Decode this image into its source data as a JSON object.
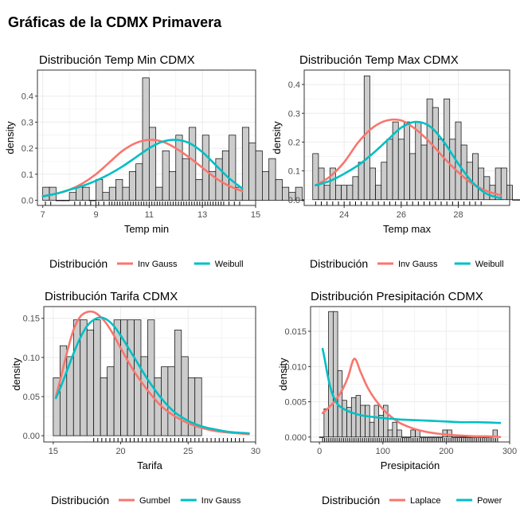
{
  "page_title": "Gráficas de la CDMX Primavera",
  "chart_data": [
    {
      "type": "histogram",
      "title": "Distribución Temp Min CDMX",
      "xlabel": "Temp min",
      "ylabel": "density",
      "xlim": [
        6.8,
        15.0
      ],
      "ylim": [
        -0.02,
        0.5
      ],
      "xticks": [
        7,
        9,
        11,
        13,
        15
      ],
      "yticks": [
        0.0,
        0.1,
        0.2,
        0.3,
        0.4
      ],
      "tick_labels_x": [
        "7",
        "9",
        "11",
        "13",
        "15"
      ],
      "tick_labels_y": [
        "0.0",
        "0.1",
        "0.2",
        "0.3",
        "0.4"
      ],
      "bin_start": 7.0,
      "bin_width": 0.25,
      "densities": [
        0.05,
        0.05,
        0.0,
        0.0,
        0.03,
        0.05,
        0.05,
        0.0,
        0.08,
        0.03,
        0.05,
        0.08,
        0.05,
        0.11,
        0.14,
        0.47,
        0.28,
        0.05,
        0.19,
        0.11,
        0.25,
        0.16,
        0.28,
        0.08,
        0.25,
        0.11,
        0.16,
        0.19,
        0.25,
        0.05,
        0.28,
        0.22,
        0.19,
        0.11,
        0.16,
        0.08,
        0.05,
        0.03,
        0.05,
        0.0,
        0.03,
        0.03,
        0.05
      ],
      "legend_title": "Distribución",
      "legend_position": "bottom",
      "grid": true,
      "series": [
        {
          "name": "Inv Gauss",
          "color": "#F8766D",
          "x": [
            7.0,
            7.5,
            8.0,
            8.5,
            9.0,
            9.5,
            10.0,
            10.5,
            11.0,
            11.5,
            12.0,
            12.5,
            13.0,
            13.5,
            14.0,
            14.5
          ],
          "y": [
            0.015,
            0.025,
            0.04,
            0.065,
            0.1,
            0.145,
            0.19,
            0.22,
            0.232,
            0.225,
            0.2,
            0.165,
            0.125,
            0.085,
            0.055,
            0.035
          ]
        },
        {
          "name": "Weibull",
          "color": "#00BFC4",
          "x": [
            7.0,
            7.5,
            8.0,
            8.5,
            9.0,
            9.5,
            10.0,
            10.5,
            11.0,
            11.5,
            12.0,
            12.5,
            13.0,
            13.5,
            14.0,
            14.5
          ],
          "y": [
            0.015,
            0.025,
            0.04,
            0.055,
            0.075,
            0.1,
            0.13,
            0.165,
            0.2,
            0.225,
            0.232,
            0.22,
            0.185,
            0.135,
            0.085,
            0.045
          ]
        }
      ],
      "rug": [
        7.1,
        7.3,
        8.2,
        8.4,
        8.6,
        8.8,
        9.0,
        9.1,
        9.3,
        9.5,
        9.6,
        9.7,
        9.8,
        9.9,
        10.0,
        10.1,
        10.2,
        10.3,
        10.4,
        10.5,
        10.6,
        10.7,
        10.8,
        10.9,
        11.0,
        11.1,
        11.2,
        11.3,
        11.4,
        11.5,
        11.6,
        11.7,
        11.8,
        11.9,
        12.0,
        12.1,
        12.2,
        12.3,
        12.4,
        12.5,
        12.6,
        12.7,
        12.8,
        12.9,
        13.0,
        13.1,
        13.2,
        13.3,
        13.4,
        13.5,
        13.6,
        13.7,
        13.8,
        14.0,
        14.2,
        14.4
      ]
    },
    {
      "type": "histogram",
      "title": "Distribución Temp Max CDMX",
      "xlabel": "Temp max",
      "ylabel": "density",
      "xlim": [
        22.6,
        29.8
      ],
      "ylim": [
        -0.02,
        0.45
      ],
      "xticks": [
        24,
        26,
        28
      ],
      "yticks": [
        0.0,
        0.1,
        0.2,
        0.3,
        0.4
      ],
      "tick_labels_x": [
        "24",
        "26",
        "28"
      ],
      "tick_labels_y": [
        "0.0",
        "0.1",
        "0.2",
        "0.3",
        "0.4"
      ],
      "bin_start": 22.9,
      "bin_width": 0.2,
      "densities": [
        0.16,
        0.11,
        0.05,
        0.11,
        0.05,
        0.05,
        0.05,
        0.08,
        0.13,
        0.43,
        0.11,
        0.05,
        0.13,
        0.21,
        0.27,
        0.21,
        0.27,
        0.16,
        0.27,
        0.19,
        0.35,
        0.32,
        0.21,
        0.35,
        0.21,
        0.27,
        0.19,
        0.13,
        0.16,
        0.11,
        0.08,
        0.05,
        0.11,
        0.11,
        0.05,
        0.0,
        0.0,
        0.05,
        0.05,
        0.0,
        0.0,
        0.0,
        0.0,
        0.05
      ],
      "legend_title": "Distribución",
      "legend_position": "bottom",
      "grid": true,
      "series": [
        {
          "name": "Inv Gauss",
          "color": "#F8766D",
          "x": [
            23.0,
            23.5,
            24.0,
            24.5,
            25.0,
            25.5,
            26.0,
            26.5,
            27.0,
            27.5,
            28.0,
            28.5,
            29.0,
            29.5
          ],
          "y": [
            0.05,
            0.08,
            0.13,
            0.2,
            0.25,
            0.275,
            0.275,
            0.245,
            0.2,
            0.145,
            0.095,
            0.055,
            0.03,
            0.015
          ]
        },
        {
          "name": "Weibull",
          "color": "#00BFC4",
          "x": [
            23.0,
            23.5,
            24.0,
            24.5,
            25.0,
            25.5,
            26.0,
            26.5,
            27.0,
            27.5,
            28.0,
            28.5,
            29.0,
            29.5
          ],
          "y": [
            0.05,
            0.065,
            0.09,
            0.12,
            0.16,
            0.205,
            0.25,
            0.27,
            0.255,
            0.2,
            0.125,
            0.06,
            0.02,
            0.005
          ]
        }
      ],
      "rug": [
        23.0,
        23.2,
        23.4,
        23.6,
        23.8,
        24.0,
        24.2,
        24.4,
        24.6,
        24.8,
        25.0,
        25.2,
        25.4,
        25.6,
        25.8,
        26.0,
        26.2,
        26.4,
        26.6,
        26.8,
        27.0,
        27.2,
        27.4,
        27.6,
        27.8,
        28.0,
        28.2,
        28.4,
        28.6,
        28.8
      ]
    },
    {
      "type": "histogram",
      "title": "Distribución Tarifa CDMX",
      "xlabel": "Tarifa",
      "ylabel": "density",
      "xlim": [
        14.3,
        30.0
      ],
      "ylim": [
        -0.008,
        0.165
      ],
      "xticks": [
        15,
        20,
        25,
        30
      ],
      "yticks": [
        0.0,
        0.05,
        0.1,
        0.15
      ],
      "tick_labels_x": [
        "15",
        "20",
        "25",
        "30"
      ],
      "tick_labels_y": [
        "0.00",
        "0.05",
        "0.10",
        "0.15"
      ],
      "bin_start": 15.0,
      "bin_width": 0.5,
      "densities": [
        0.074,
        0.115,
        0.101,
        0.148,
        0.148,
        0.135,
        0.148,
        0.074,
        0.088,
        0.148,
        0.148,
        0.148,
        0.148,
        0.101,
        0.148,
        0.074,
        0.088,
        0.088,
        0.135,
        0.101,
        0.074,
        0.074
      ],
      "legend_title": "Distribución",
      "legend_position": "bottom",
      "grid": true,
      "series": [
        {
          "name": "Gumbel",
          "color": "#F8766D",
          "x": [
            15.2,
            15.5,
            16.0,
            16.5,
            17.0,
            17.5,
            18.0,
            18.5,
            19.0,
            19.5,
            20.0,
            21.0,
            22.0,
            23.0,
            24.0,
            25.0,
            26.0,
            27.0,
            28.0,
            29.5
          ],
          "y": [
            0.05,
            0.07,
            0.105,
            0.135,
            0.152,
            0.158,
            0.158,
            0.152,
            0.142,
            0.128,
            0.112,
            0.082,
            0.058,
            0.038,
            0.025,
            0.016,
            0.01,
            0.006,
            0.004,
            0.002
          ]
        },
        {
          "name": "Inv Gauss",
          "color": "#00BFC4",
          "x": [
            15.2,
            15.5,
            16.0,
            16.5,
            17.0,
            17.5,
            18.0,
            18.5,
            19.0,
            19.5,
            20.0,
            21.0,
            22.0,
            23.0,
            24.0,
            25.0,
            26.0,
            27.0,
            28.0,
            29.5
          ],
          "y": [
            0.048,
            0.06,
            0.082,
            0.105,
            0.125,
            0.14,
            0.148,
            0.151,
            0.148,
            0.14,
            0.128,
            0.1,
            0.072,
            0.048,
            0.03,
            0.019,
            0.012,
            0.008,
            0.005,
            0.003
          ]
        }
      ],
      "rug": [
        18.0,
        18.3,
        18.6,
        18.9,
        19.2,
        19.5,
        19.8,
        20.1,
        20.4,
        20.7,
        21.0,
        21.3,
        21.6,
        21.9,
        22.2,
        22.5,
        22.8,
        23.1,
        23.4,
        23.7,
        24.0,
        24.3,
        24.6,
        24.9,
        25.2,
        25.5,
        25.8,
        26.1,
        26.4,
        26.7,
        27.0,
        27.3,
        27.6,
        27.9,
        28.2,
        28.5,
        28.8,
        29.1
      ]
    },
    {
      "type": "histogram",
      "title": "Distribución Presipitación CDMX",
      "xlabel": "Presipitación",
      "ylabel": "density",
      "xlim": [
        -14,
        300
      ],
      "ylim": [
        -0.0007,
        0.0185
      ],
      "xticks": [
        0,
        100,
        200,
        300
      ],
      "yticks": [
        0.0,
        0.005,
        0.01,
        0.015
      ],
      "tick_labels_x": [
        "0",
        "100",
        "200",
        "300"
      ],
      "tick_labels_y": [
        "0.000",
        "0.005",
        "0.010",
        "0.015"
      ],
      "bin_start": 0,
      "bin_width": 7.2,
      "densities": [
        0.0,
        0.004,
        0.0178,
        0.0178,
        0.0094,
        0.0052,
        0.0042,
        0.0056,
        0.0059,
        0.0045,
        0.0045,
        0.0021,
        0.0045,
        0.0031,
        0.0045,
        0.001,
        0.0021,
        0.001,
        0.0,
        0.0,
        0.001,
        0.001,
        0.0,
        0.0,
        0.0,
        0.0,
        0.0,
        0.001,
        0.001,
        0.0,
        0.0,
        0.0,
        0.0,
        0.0,
        0.0,
        0.0,
        0.0,
        0.0,
        0.001
      ],
      "legend_title": "Distribución",
      "legend_position": "bottom",
      "grid": true,
      "series": [
        {
          "name": "Laplace",
          "color": "#F8766D",
          "x": [
            5,
            15,
            25,
            35,
            45,
            55,
            65,
            75,
            85,
            95,
            105,
            125,
            145,
            165,
            185,
            205,
            225,
            245,
            265,
            285
          ],
          "y": [
            0.0034,
            0.0042,
            0.0052,
            0.0065,
            0.0085,
            0.0111,
            0.0092,
            0.0072,
            0.0057,
            0.0045,
            0.0035,
            0.0021,
            0.0013,
            0.0008,
            0.0005,
            0.0003,
            0.0002,
            0.0001,
            0.0001,
            0.0
          ]
        },
        {
          "name": "Power",
          "color": "#00BFC4",
          "x": [
            5,
            8,
            12,
            16,
            20,
            25,
            30,
            40,
            50,
            65,
            80,
            100,
            125,
            150,
            175,
            200,
            225,
            250,
            285
          ],
          "y": [
            0.0125,
            0.0112,
            0.0092,
            0.0075,
            0.0062,
            0.0052,
            0.0045,
            0.0039,
            0.0035,
            0.0031,
            0.0029,
            0.0027,
            0.0025,
            0.0024,
            0.0023,
            0.0022,
            0.0021,
            0.0021,
            0.002
          ]
        }
      ],
      "rug": [
        5,
        8,
        11,
        14,
        17,
        20,
        23,
        26,
        29,
        32,
        35,
        38,
        41,
        44,
        47,
        50,
        53,
        56,
        59,
        62,
        65,
        68,
        71,
        74,
        77,
        80,
        83,
        86,
        89,
        92,
        95,
        98,
        101,
        104,
        107,
        110,
        113,
        116,
        119,
        122,
        125,
        128,
        131,
        134,
        137,
        140,
        143,
        146,
        149,
        152,
        155,
        158,
        161,
        164,
        167,
        170,
        173,
        176,
        179,
        182,
        185,
        188,
        191,
        194,
        197,
        200,
        203,
        206,
        209,
        212,
        215,
        218,
        221,
        224,
        227,
        230,
        233,
        236,
        239,
        242,
        245,
        248,
        251,
        254,
        257,
        260,
        263,
        266,
        269,
        272,
        275,
        278,
        281
      ]
    }
  ]
}
